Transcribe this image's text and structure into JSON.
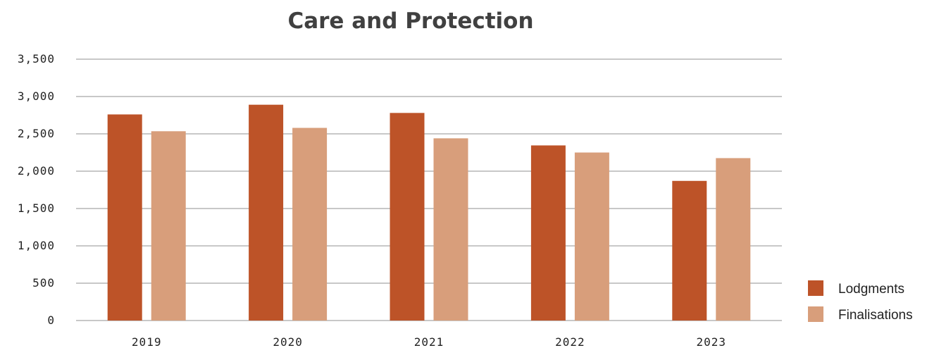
{
  "chart_data": {
    "type": "bar",
    "title": "Care and Protection",
    "xlabel": "",
    "ylabel": "",
    "categories": [
      "2019",
      "2020",
      "2021",
      "2022",
      "2023"
    ],
    "series": [
      {
        "name": "Lodgments",
        "color": "#bd5328",
        "values": [
          2760,
          2890,
          2780,
          2345,
          1870
        ]
      },
      {
        "name": "Finalisations",
        "color": "#d89e7b",
        "values": [
          2535,
          2580,
          2440,
          2250,
          2175
        ]
      }
    ],
    "ylim": [
      0,
      3500
    ],
    "yticks": [
      0,
      500,
      1000,
      1500,
      2000,
      2500,
      3000,
      3500
    ],
    "ytick_labels": [
      "0",
      "500",
      "1,000",
      "1,500",
      "2,000",
      "2,500",
      "3,000",
      "3,500"
    ],
    "grid": true,
    "legend_position": "bottom-right"
  }
}
